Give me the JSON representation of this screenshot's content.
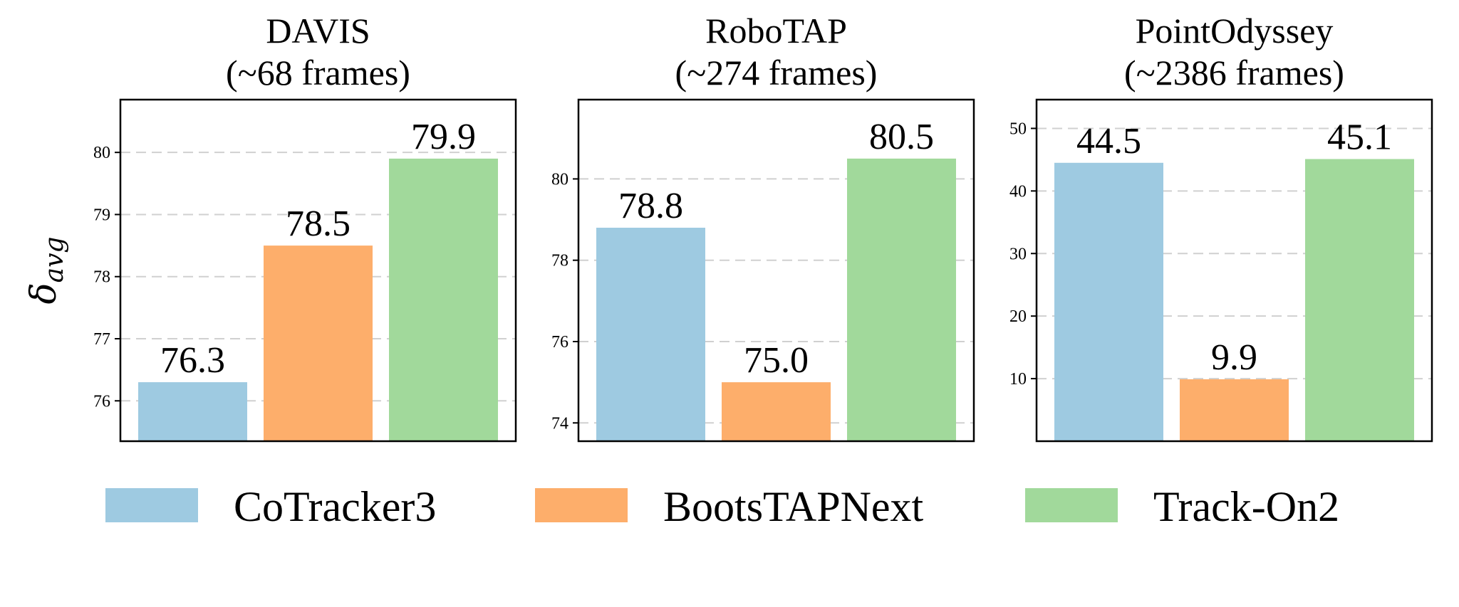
{
  "chart_data": [
    {
      "type": "bar",
      "title": "DAVIS",
      "subtitle": "(~68 frames)",
      "ylabel": "δavg",
      "categories": [
        "CoTracker3",
        "BootsTAPNext",
        "Track-On2"
      ],
      "values": [
        76.3,
        78.5,
        79.9
      ],
      "ylim": [
        75.35,
        80.85
      ],
      "yticks": [
        76,
        77,
        78,
        79,
        80
      ],
      "grid": true
    },
    {
      "type": "bar",
      "title": "RoboTAP",
      "subtitle": "(~274 frames)",
      "ylabel": "",
      "categories": [
        "CoTracker3",
        "BootsTAPNext",
        "Track-On2"
      ],
      "values": [
        78.8,
        75.0,
        80.5
      ],
      "ylim": [
        73.55,
        81.95
      ],
      "yticks": [
        74,
        76,
        78,
        80
      ],
      "grid": true
    },
    {
      "type": "bar",
      "title": "PointOdyssey",
      "subtitle": "(~2386 frames)",
      "ylabel": "",
      "categories": [
        "CoTracker3",
        "BootsTAPNext",
        "Track-On2"
      ],
      "values": [
        44.5,
        9.9,
        45.1
      ],
      "ylim": [
        0.0,
        54.6
      ],
      "yticks": [
        10,
        20,
        30,
        40,
        50
      ],
      "grid": true
    }
  ],
  "legend": {
    "placement": "bottom",
    "entries": [
      {
        "label": "CoTracker3",
        "color": "#9ecae1"
      },
      {
        "label": "BootsTAPNext",
        "color": "#fdae6b"
      },
      {
        "label": "Track-On2",
        "color": "#a1d99b"
      }
    ]
  }
}
